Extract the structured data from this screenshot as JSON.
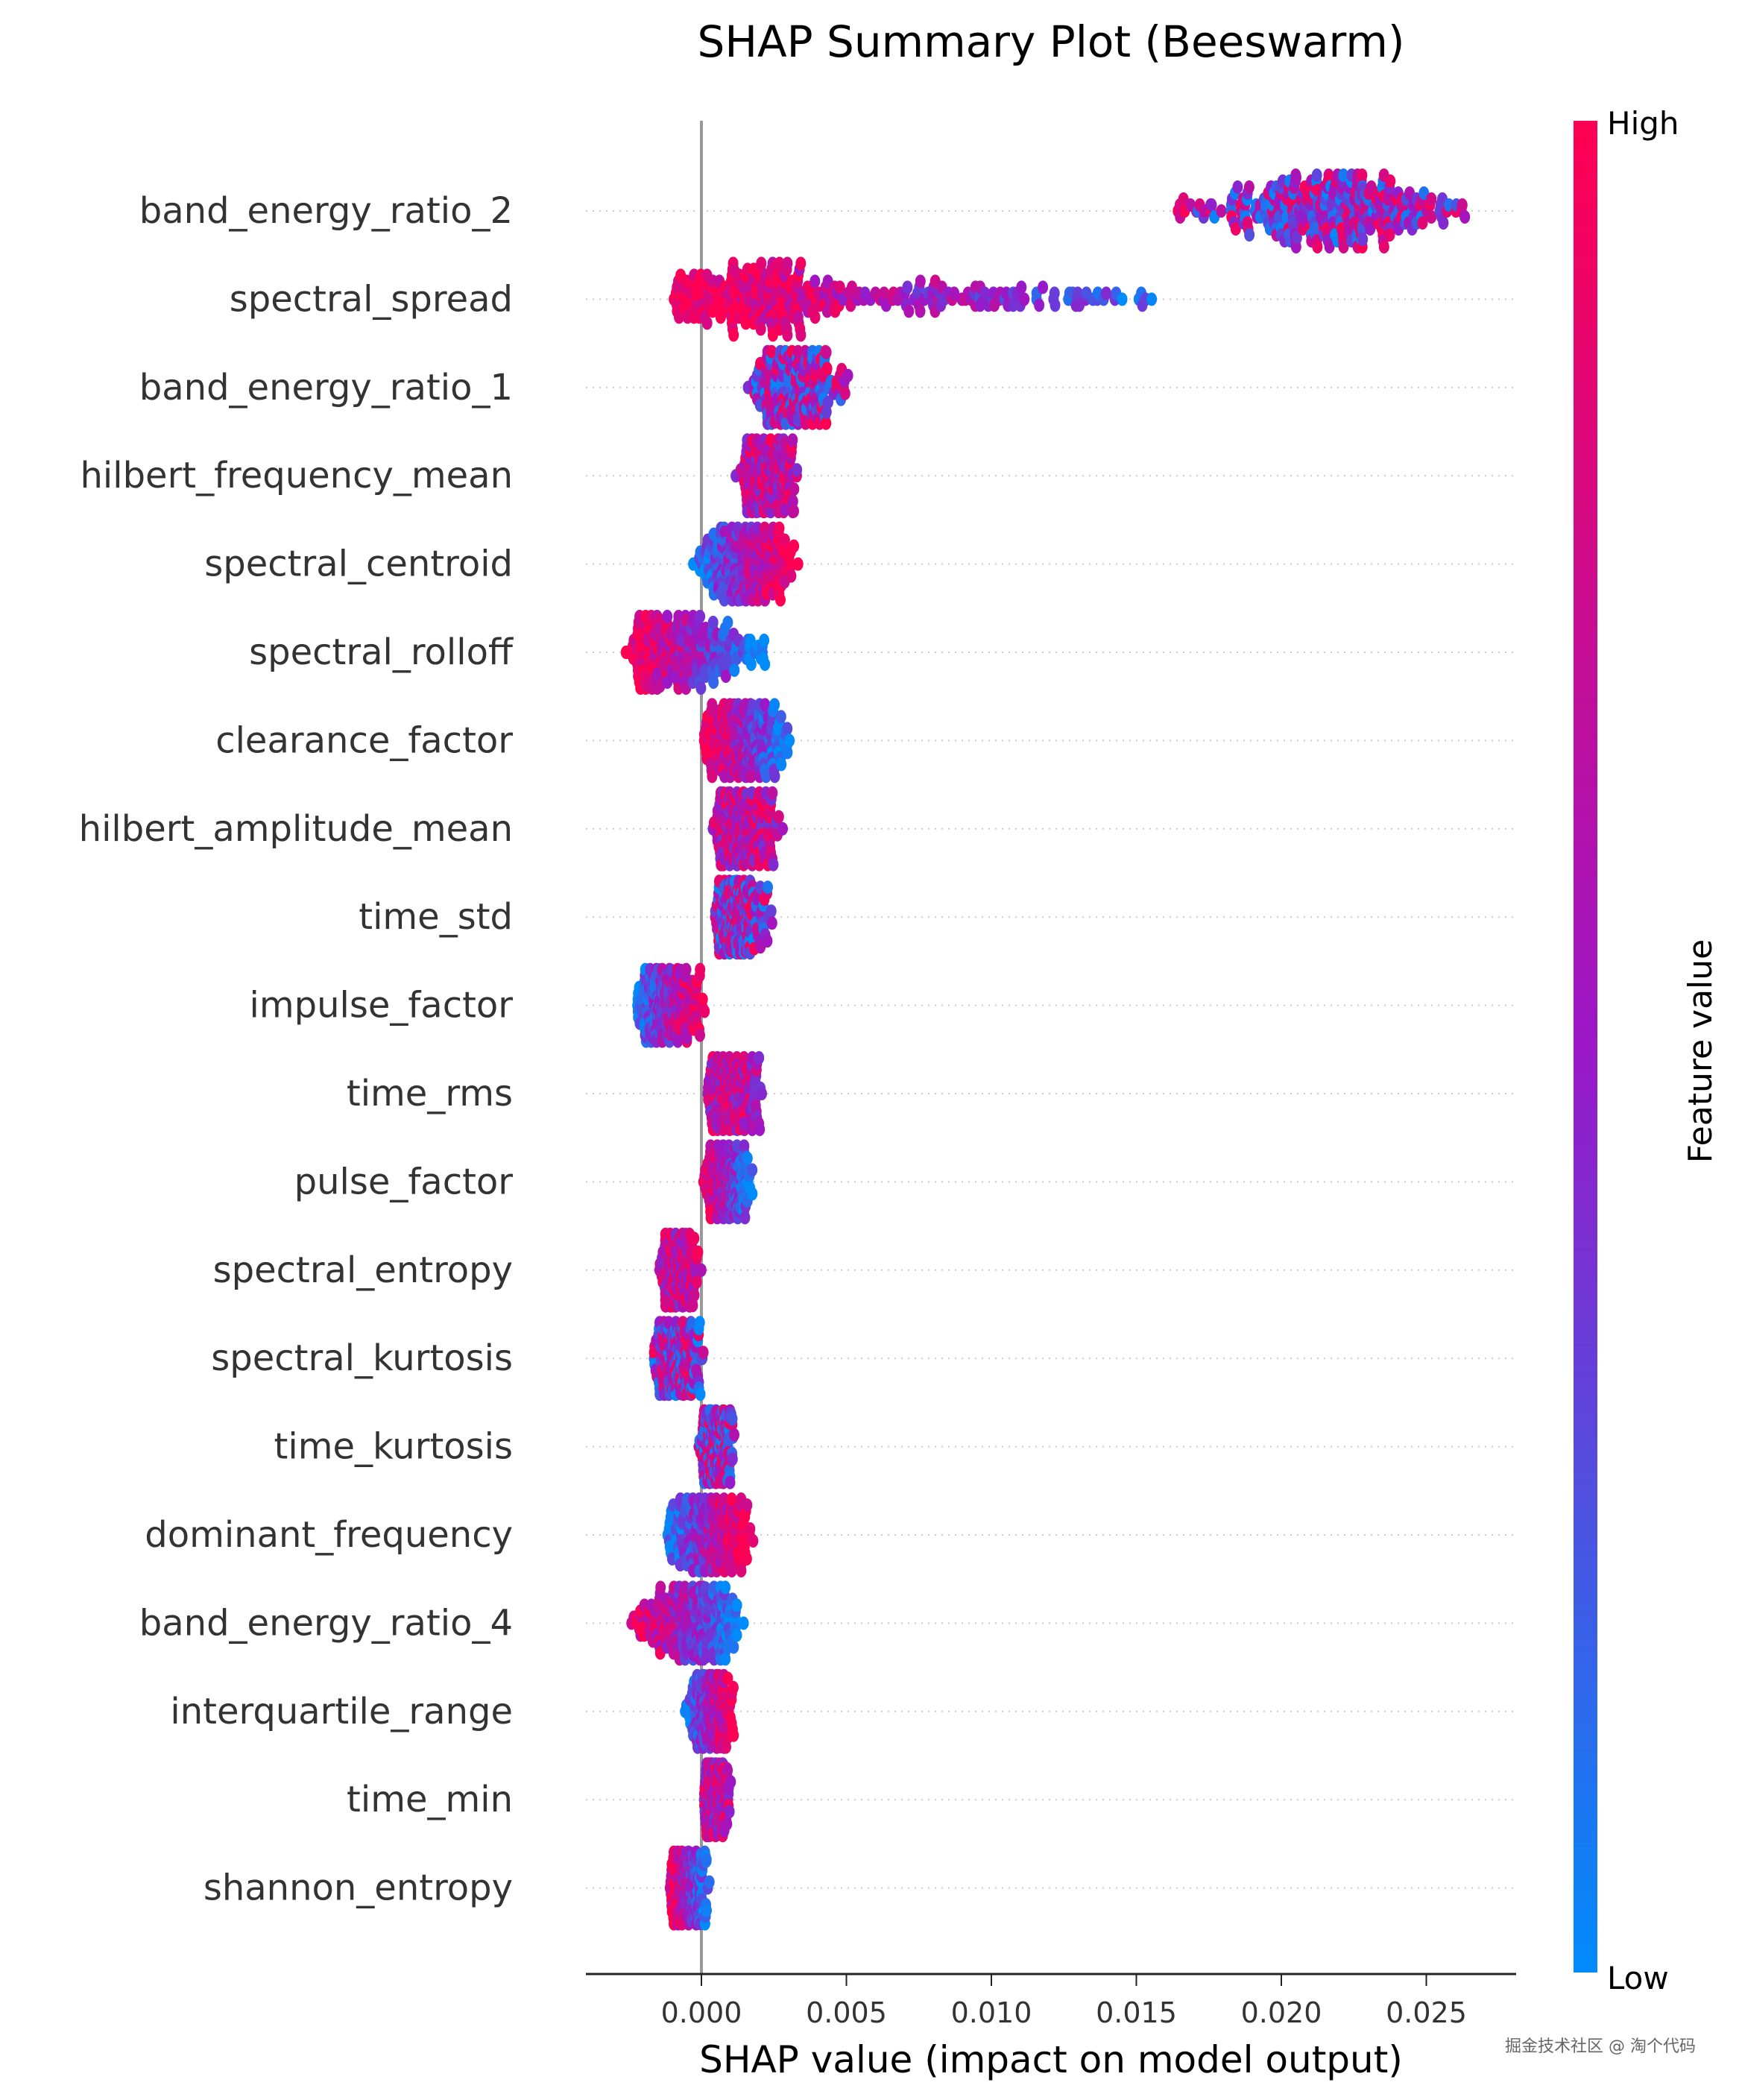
{
  "chart_data": {
    "type": "scatter",
    "subtype": "beeswarm",
    "title": "SHAP Summary Plot (Beeswarm)",
    "xlabel": "SHAP value (impact on model output)",
    "xlim": [
      -0.004,
      0.0283
    ],
    "xticks": [
      0.0,
      0.005,
      0.01,
      0.015,
      0.02,
      0.025
    ],
    "xtick_labels": [
      "0.000",
      "0.005",
      "0.010",
      "0.015",
      "0.020",
      "0.025"
    ],
    "colorbar": {
      "label": "Feature value",
      "high_label": "High",
      "low_label": "Low",
      "high_color": "#ff0052",
      "mid_color": "#9b17c8",
      "low_color": "#008bfb"
    },
    "features": [
      {
        "name": "band_energy_ratio_2",
        "min": 0.0159,
        "mode": 0.022,
        "max": 0.0267,
        "color_trend": "mixed"
      },
      {
        "name": "spectral_spread",
        "min": -0.0012,
        "mode": 0.002,
        "max": 0.0189,
        "color_trend": "high_left"
      },
      {
        "name": "band_energy_ratio_1",
        "min": 0.0015,
        "mode": 0.0033,
        "max": 0.0052,
        "color_trend": "mixed"
      },
      {
        "name": "hilbert_frequency_mean",
        "min": 0.0011,
        "mode": 0.0022,
        "max": 0.0034,
        "color_trend": "mixed_high"
      },
      {
        "name": "spectral_centroid",
        "min": -0.0004,
        "mode": 0.0015,
        "max": 0.0035,
        "color_trend": "high_right"
      },
      {
        "name": "spectral_rolloff",
        "min": -0.0027,
        "mode": -0.0018,
        "max": 0.0024,
        "color_trend": "high_left"
      },
      {
        "name": "clearance_factor",
        "min": 0.0,
        "mode": 0.001,
        "max": 0.0032,
        "color_trend": "high_left"
      },
      {
        "name": "hilbert_amplitude_mean",
        "min": 0.0003,
        "mode": 0.001,
        "max": 0.0029,
        "color_trend": "mixed_high"
      },
      {
        "name": "time_std",
        "min": 0.0004,
        "mode": 0.001,
        "max": 0.0025,
        "color_trend": "mixed"
      },
      {
        "name": "impulse_factor",
        "min": -0.0023,
        "mode": -0.0013,
        "max": 0.0002,
        "color_trend": "high_right"
      },
      {
        "name": "time_rms",
        "min": 0.0001,
        "mode": 0.0008,
        "max": 0.0022,
        "color_trend": "mixed_high"
      },
      {
        "name": "pulse_factor",
        "min": 0.0,
        "mode": 0.0009,
        "max": 0.0019,
        "color_trend": "high_left"
      },
      {
        "name": "spectral_entropy",
        "min": -0.0015,
        "mode": -0.0008,
        "max": 0.0,
        "color_trend": "mixed_high"
      },
      {
        "name": "spectral_kurtosis",
        "min": -0.0017,
        "mode": -0.0008,
        "max": 0.0001,
        "color_trend": "mixed"
      },
      {
        "name": "time_kurtosis",
        "min": -0.0001,
        "mode": 0.0006,
        "max": 0.0012,
        "color_trend": "mixed"
      },
      {
        "name": "dominant_frequency",
        "min": -0.0014,
        "mode": 0.0004,
        "max": 0.0019,
        "color_trend": "high_right"
      },
      {
        "name": "band_energy_ratio_4",
        "min": -0.0026,
        "mode": 0.0003,
        "max": 0.0015,
        "color_trend": "high_left"
      },
      {
        "name": "interquartile_range",
        "min": -0.0006,
        "mode": 0.0006,
        "max": 0.0012,
        "color_trend": "high_right"
      },
      {
        "name": "time_min",
        "min": 0.0,
        "mode": 0.0004,
        "max": 0.0011,
        "color_trend": "mixed_high"
      },
      {
        "name": "shannon_entropy",
        "min": -0.0012,
        "mode": -0.0004,
        "max": 0.0004,
        "color_trend": "high_left"
      }
    ]
  },
  "watermark": "掘金技术社区 @ 淘个代码"
}
